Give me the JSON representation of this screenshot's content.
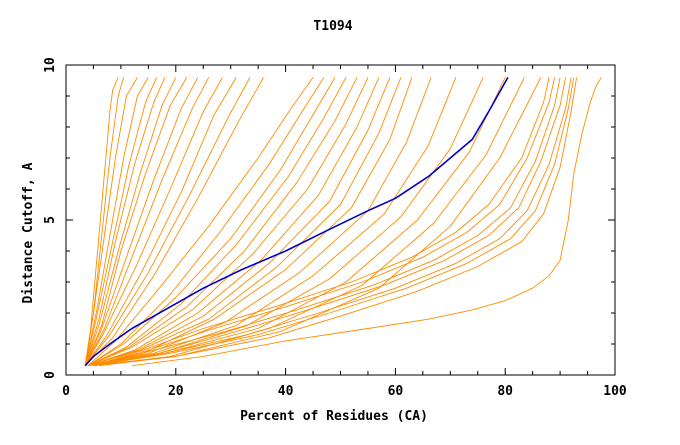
{
  "chart_data": {
    "type": "line",
    "title": "T1094",
    "xlabel": "Percent of Residues (CA)",
    "ylabel": "Distance Cutoff, A",
    "xlim": [
      0,
      100
    ],
    "ylim": [
      0,
      10
    ],
    "xticks": [
      "0",
      "20",
      "40",
      "60",
      "80",
      "100"
    ],
    "yticks": [
      "0",
      "5",
      "10"
    ],
    "grid": false,
    "colors": {
      "highlight": "#0000cc",
      "others": "#ff8c00",
      "axis": "#000000"
    },
    "series": [
      {
        "highlight": true,
        "x": [
          3.5,
          5,
          8,
          12,
          18,
          25,
          32,
          40,
          48,
          55,
          60,
          66,
          70,
          74,
          77,
          80.5
        ],
        "y": [
          0.3,
          0.6,
          1.0,
          1.5,
          2.1,
          2.8,
          3.4,
          4.0,
          4.7,
          5.3,
          5.7,
          6.4,
          7.0,
          7.6,
          8.5,
          9.6
        ]
      },
      {
        "x": [
          3.5,
          4.5,
          5.5,
          6.5,
          7.5,
          8,
          8.5,
          9.5
        ],
        "y": [
          0.3,
          1.5,
          3.5,
          5.5,
          7.5,
          8.5,
          9.2,
          9.6
        ]
      },
      {
        "x": [
          3.5,
          5,
          6.5,
          8,
          9.5,
          10.5
        ],
        "y": [
          0.3,
          2.0,
          4.5,
          7.0,
          9.0,
          9.6
        ]
      },
      {
        "x": [
          3.5,
          5,
          7,
          9,
          11,
          13
        ],
        "y": [
          0.3,
          2.0,
          4.5,
          7.0,
          9.0,
          9.6
        ]
      },
      {
        "x": [
          3.5,
          5.5,
          8,
          10.5,
          13,
          15
        ],
        "y": [
          0.3,
          2.0,
          4.5,
          7.0,
          9.0,
          9.6
        ]
      },
      {
        "x": [
          3.5,
          5.5,
          8.5,
          11.5,
          14.5,
          16.5
        ],
        "y": [
          0.3,
          1.8,
          4.3,
          6.8,
          8.8,
          9.6
        ]
      },
      {
        "x": [
          3.5,
          6,
          9,
          12.5,
          16,
          18
        ],
        "y": [
          0.3,
          1.8,
          4.3,
          6.8,
          8.8,
          9.6
        ]
      },
      {
        "x": [
          3.5,
          6,
          9.5,
          13.5,
          17.5,
          20
        ],
        "y": [
          0.3,
          1.6,
          4.0,
          6.5,
          8.7,
          9.6
        ]
      },
      {
        "x": [
          3.5,
          6.5,
          10,
          14.5,
          19,
          22
        ],
        "y": [
          0.3,
          1.6,
          4.0,
          6.5,
          8.7,
          9.6
        ]
      },
      {
        "x": [
          3.5,
          6.5,
          11,
          16,
          21,
          24
        ],
        "y": [
          0.3,
          1.5,
          3.8,
          6.3,
          8.6,
          9.6
        ]
      },
      {
        "x": [
          3.5,
          7,
          12,
          17.5,
          23,
          26
        ],
        "y": [
          0.3,
          1.5,
          3.8,
          6.3,
          8.6,
          9.6
        ]
      },
      {
        "x": [
          3.5,
          7,
          13,
          19,
          25,
          28.5
        ],
        "y": [
          0.3,
          1.4,
          3.6,
          6.0,
          8.5,
          9.6
        ]
      },
      {
        "x": [
          3.5,
          7.5,
          14,
          21,
          27,
          31
        ],
        "y": [
          0.3,
          1.3,
          3.4,
          5.9,
          8.4,
          9.6
        ]
      },
      {
        "x": [
          3.5,
          8,
          15,
          22.5,
          29.5,
          33.5
        ],
        "y": [
          0.3,
          1.3,
          3.3,
          5.8,
          8.3,
          9.6
        ]
      },
      {
        "x": [
          3.5,
          8.5,
          16,
          24,
          31.5,
          36
        ],
        "y": [
          0.3,
          1.2,
          3.2,
          5.7,
          8.2,
          9.6
        ]
      },
      {
        "x": [
          4,
          9,
          17,
          26,
          35,
          41,
          45
        ],
        "y": [
          0.3,
          1.1,
          2.8,
          4.8,
          7.0,
          8.6,
          9.6
        ]
      },
      {
        "x": [
          4,
          10,
          19,
          28,
          37,
          43,
          47
        ],
        "y": [
          0.3,
          1.0,
          2.6,
          4.6,
          6.8,
          8.5,
          9.6
        ]
      },
      {
        "x": [
          4,
          10.5,
          20,
          30,
          39,
          45,
          49
        ],
        "y": [
          0.3,
          1.0,
          2.5,
          4.4,
          6.6,
          8.4,
          9.6
        ]
      },
      {
        "x": [
          4,
          11,
          21,
          31,
          40.5,
          47,
          51
        ],
        "y": [
          0.3,
          0.9,
          2.3,
          4.2,
          6.4,
          8.3,
          9.6
        ]
      },
      {
        "x": [
          4,
          11.5,
          22,
          32.5,
          42,
          49,
          53
        ],
        "y": [
          0.3,
          0.9,
          2.2,
          4.0,
          6.2,
          8.2,
          9.6
        ]
      },
      {
        "x": [
          4,
          12,
          23,
          34,
          44,
          51,
          55
        ],
        "y": [
          0.3,
          0.9,
          2.1,
          3.9,
          6.0,
          8.1,
          9.6
        ]
      },
      {
        "x": [
          4,
          12.5,
          24,
          35.5,
          46,
          53,
          57
        ],
        "y": [
          0.3,
          0.8,
          2.0,
          3.7,
          5.8,
          8.0,
          9.6
        ]
      },
      {
        "x": [
          4,
          13,
          25,
          37,
          48,
          55,
          59
        ],
        "y": [
          0.3,
          0.8,
          1.9,
          3.6,
          5.6,
          7.9,
          9.6
        ]
      },
      {
        "x": [
          4,
          13.5,
          26,
          38.5,
          50,
          57,
          61
        ],
        "y": [
          0.3,
          0.8,
          1.8,
          3.5,
          5.5,
          7.8,
          9.6
        ]
      },
      {
        "x": [
          4,
          14,
          27,
          40,
          52,
          59,
          63
        ],
        "y": [
          0.3,
          0.7,
          1.8,
          3.4,
          5.4,
          7.6,
          9.6
        ]
      },
      {
        "x": [
          4,
          15,
          29,
          42.5,
          55,
          62,
          66.5
        ],
        "y": [
          0.3,
          0.7,
          1.7,
          3.3,
          5.3,
          7.5,
          9.6
        ]
      },
      {
        "x": [
          4,
          16,
          31,
          45,
          58,
          66,
          71
        ],
        "y": [
          0.3,
          0.7,
          1.6,
          3.2,
          5.2,
          7.4,
          9.6
        ]
      },
      {
        "x": [
          4,
          17,
          33,
          48,
          61,
          70,
          76
        ],
        "y": [
          0.3,
          0.7,
          1.6,
          3.1,
          5.1,
          7.3,
          9.6
        ]
      },
      {
        "x": [
          5,
          18,
          35,
          51,
          64,
          73.5,
          80
        ],
        "y": [
          0.3,
          0.7,
          1.5,
          3.0,
          5.0,
          7.2,
          9.6
        ]
      },
      {
        "x": [
          5,
          19,
          37,
          54,
          67,
          76.5,
          83.5
        ],
        "y": [
          0.3,
          0.6,
          1.5,
          2.9,
          4.9,
          7.1,
          9.6
        ]
      },
      {
        "x": [
          5,
          20,
          39,
          57,
          70,
          79,
          86.5
        ],
        "y": [
          0.3,
          0.6,
          1.4,
          2.8,
          4.8,
          7.0,
          9.6
        ]
      },
      {
        "x": [
          5,
          14,
          25,
          38,
          52,
          63,
          71,
          77,
          83,
          87,
          88
        ],
        "y": [
          0.3,
          0.8,
          1.5,
          2.2,
          3.0,
          3.8,
          4.6,
          5.5,
          7.0,
          8.8,
          9.6
        ]
      },
      {
        "x": [
          5,
          15,
          27,
          40,
          54,
          65,
          73,
          79,
          84,
          88,
          89
        ],
        "y": [
          0.3,
          0.8,
          1.5,
          2.2,
          3.0,
          3.8,
          4.6,
          5.5,
          7.0,
          8.8,
          9.6
        ]
      },
      {
        "x": [
          5,
          16,
          29,
          42,
          56,
          67,
          75,
          81,
          85.5,
          89,
          90
        ],
        "y": [
          0.3,
          0.8,
          1.4,
          2.1,
          2.9,
          3.7,
          4.5,
          5.4,
          6.9,
          8.7,
          9.6
        ]
      },
      {
        "x": [
          5,
          17,
          31,
          44,
          58,
          69,
          77,
          82.5,
          86.5,
          90,
          91
        ],
        "y": [
          0.3,
          0.7,
          1.4,
          2.1,
          2.9,
          3.7,
          4.5,
          5.4,
          6.9,
          8.7,
          9.6
        ]
      },
      {
        "x": [
          5,
          18,
          33,
          46,
          60,
          71,
          79,
          84,
          88,
          91,
          92
        ],
        "y": [
          0.3,
          0.7,
          1.3,
          2.0,
          2.8,
          3.6,
          4.4,
          5.3,
          6.8,
          8.6,
          9.6
        ]
      },
      {
        "x": [
          5,
          19,
          35,
          48,
          62,
          73,
          81,
          85.5,
          89,
          91.5,
          92.5
        ],
        "y": [
          0.3,
          0.7,
          1.3,
          2.0,
          2.8,
          3.6,
          4.4,
          5.3,
          6.8,
          8.6,
          9.6
        ]
      },
      {
        "x": [
          6,
          20,
          37,
          50,
          64,
          75,
          83,
          87,
          90,
          92,
          93
        ],
        "y": [
          0.3,
          0.6,
          1.2,
          1.9,
          2.7,
          3.5,
          4.3,
          5.2,
          6.7,
          8.5,
          9.6
        ]
      },
      {
        "x": [
          12,
          25,
          40,
          55,
          66,
          74,
          80,
          85,
          88,
          90,
          91.5,
          92.5,
          94,
          95.5,
          96.5,
          97.5
        ],
        "y": [
          0.3,
          0.6,
          1.1,
          1.5,
          1.8,
          2.1,
          2.4,
          2.8,
          3.2,
          3.7,
          5.0,
          6.5,
          7.8,
          8.8,
          9.3,
          9.6
        ]
      }
    ]
  }
}
